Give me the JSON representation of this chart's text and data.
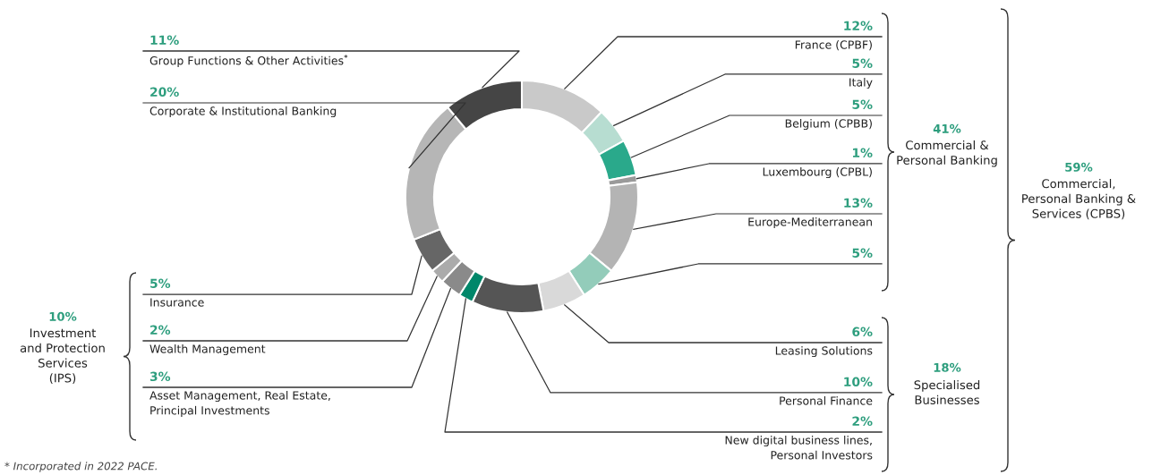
{
  "chart_data": {
    "type": "donut",
    "categories": [
      "France (CPBF)",
      "Italy",
      "Belgium (CPBB)",
      "Luxembourg (CPBL)",
      "Europe-Mediterranean",
      null,
      "Leasing Solutions",
      "Personal Finance",
      "New digital business lines,\nPersonal Investors",
      "Asset Management, Real Estate,\nPrincipal Investments",
      "Wealth Management",
      "Insurance",
      "Corporate & Institutional Banking",
      "Group Functions & Other Activities$^{*}$"
    ],
    "values": [
      12,
      5,
      5,
      1,
      13,
      5,
      6,
      10,
      2,
      3,
      2,
      5,
      20,
      11
    ],
    "value_labels": [
      "12%",
      "5%",
      "5%",
      "1%",
      "13%",
      "5%",
      "6%",
      "10%",
      "2%",
      "3%",
      "2%",
      "5%",
      "20%",
      "11%"
    ],
    "colors": [
      "#c9c9c9",
      "#b7ddd1",
      "#2aa98b",
      "#9a9a9a",
      "#b4b4b4",
      "#93ccba",
      "#d9d9d9",
      "#555555",
      "#00876a",
      "#8a8a8a",
      "#ababab",
      "#666666",
      "#b6b6b6",
      "#454545"
    ],
    "annotations": [
      "41%",
      "Commercial &\nPersonal Banking",
      "18%",
      "Specialised\nBusinesses",
      "59%",
      "Commercial,\nPersonal Banking &\nServices (CPBS)",
      "10%",
      "Investment\nand Protection\nServices\n(IPS)",
      "* Incorporated in 2022 PACE."
    ]
  }
}
